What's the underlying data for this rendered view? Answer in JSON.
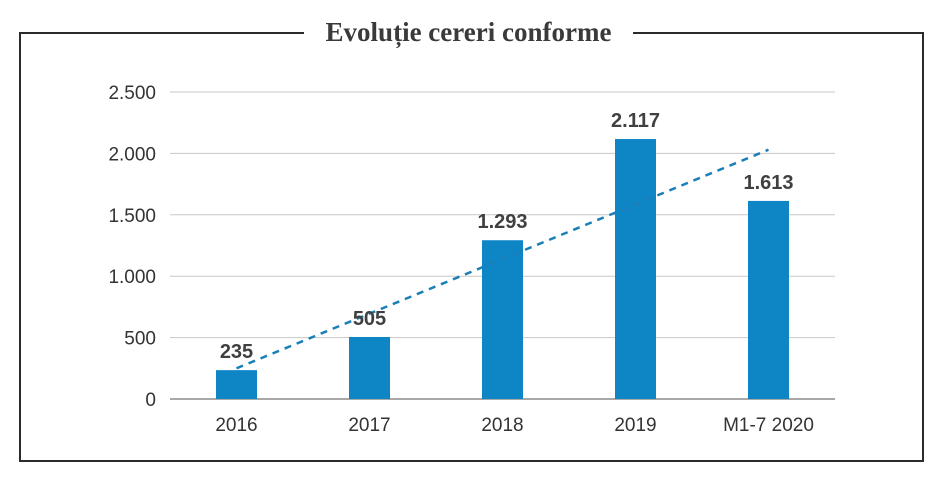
{
  "chart_data": {
    "type": "bar",
    "title": "Evoluție cereri conforme",
    "categories": [
      "2016",
      "2017",
      "2018",
      "2019",
      "M1-7 2020"
    ],
    "values": [
      235,
      505,
      1293,
      2117,
      1613
    ],
    "value_labels": [
      "235",
      "505",
      "1.293",
      "2.117",
      "1.613"
    ],
    "ylim": [
      0,
      2500
    ],
    "yticks": [
      0,
      500,
      1000,
      1500,
      2000,
      2500
    ],
    "ytick_labels": [
      "0",
      "500",
      "1.000",
      "1.500",
      "2.000",
      "2.500"
    ],
    "grid": true,
    "bar_color": "#0e86c6",
    "trendline": {
      "style": "dashed",
      "color": "#1a7fb8",
      "start": 250,
      "end": 2030
    }
  }
}
